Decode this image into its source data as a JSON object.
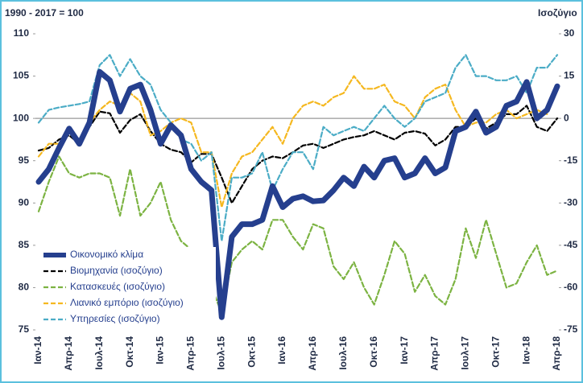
{
  "chart_data": {
    "type": "line",
    "title": "1990 - 2017 = 100",
    "y2_title": "Ισοζύγιο",
    "categories": [
      "Ιαν-14",
      null,
      null,
      "Απρ-14",
      null,
      null,
      "Ιουλ-14",
      null,
      null,
      "Οκτ-14",
      null,
      null,
      "Ιαν-15",
      null,
      null,
      "Απρ-15",
      null,
      null,
      "Ιουλ-15",
      null,
      null,
      "Οκτ-15",
      null,
      null,
      "Ιαν-16",
      null,
      null,
      "Απρ-16",
      null,
      null,
      "Ιουλ-16",
      null,
      null,
      "Οκτ-16",
      null,
      null,
      "Ιαν-17",
      null,
      null,
      "Απρ-17",
      null,
      null,
      "Ιουλ-17",
      null,
      null,
      "Οκτ-17",
      null,
      null,
      "Ιαν-18",
      null,
      null,
      "Απρ-18"
    ],
    "series": [
      {
        "name": "Οικονομικό κλίμα",
        "color": "#253f8e",
        "line_style": "solid",
        "axis": "y",
        "values": [
          92.5,
          94,
          96.5,
          98.8,
          97,
          99.5,
          105.5,
          104.5,
          100.8,
          103.5,
          104,
          101,
          97,
          99.2,
          98,
          94,
          92.5,
          91.5,
          76.5,
          86,
          87.5,
          87.5,
          88,
          92,
          89.5,
          90.5,
          90.8,
          90.2,
          90.3,
          91.5,
          93,
          92,
          94.3,
          93,
          95,
          95.3,
          93,
          93.5,
          95.3,
          93.5,
          94.2,
          98.5,
          99,
          100.8,
          98.3,
          99,
          101.5,
          102,
          104.3,
          100,
          101,
          103.8
        ]
      },
      {
        "name": "Βιομηχανία (ισοζύγιο)",
        "color": "#000000",
        "line_style": "dashed",
        "axis": "y2",
        "values": [
          -11.4,
          -10.5,
          -7.5,
          -6,
          -9,
          -3,
          2.4,
          1.8,
          -5.1,
          -0.6,
          1.5,
          -4.5,
          -9,
          -11.1,
          -12,
          -15.6,
          -12.6,
          -12.6,
          -21,
          -30,
          -24,
          -18,
          -15,
          -13.5,
          -14.1,
          -12,
          -9.6,
          -9,
          -10.5,
          -9,
          -7.5,
          -6.6,
          -6,
          -4.5,
          -6,
          -7.5,
          -5.1,
          -4.5,
          -5.4,
          -9.6,
          -7.5,
          -3,
          -3,
          0,
          -3.6,
          -1.5,
          1.5,
          1.5,
          4.5,
          -3,
          -4.5,
          0
        ]
      },
      {
        "name": "Κατασκευές (ισοζύγιο)",
        "color": "#7cb342",
        "line_style": "dashed",
        "axis": "y2",
        "values": [
          -33,
          -22.5,
          -13.5,
          -19.5,
          -21,
          -19.5,
          -19.5,
          -21,
          -34.5,
          -18,
          -34.5,
          -30,
          -22.5,
          -36,
          -43.5,
          -46.5,
          -48,
          -60,
          -69,
          -51,
          -46.5,
          -43.5,
          -46.5,
          -36,
          -36,
          -42,
          -46.5,
          -37.5,
          -39,
          -52.5,
          -57,
          -51,
          -60,
          -66,
          -55.5,
          -43.5,
          -48,
          -61.5,
          -55.5,
          -63,
          -66,
          -57,
          -39,
          -49.5,
          -36,
          -48,
          -60,
          -58.5,
          -51,
          -45,
          -55.5,
          -54
        ]
      },
      {
        "name": "Λιανικό εμπόριο (ισοζύγιο)",
        "color": "#f5b820",
        "line_style": "dashed",
        "axis": "y2",
        "values": [
          -13.5,
          -9,
          -9,
          -4.5,
          -7.5,
          -1.5,
          3,
          6,
          4.5,
          9,
          6,
          -6,
          -4.5,
          -1.5,
          0,
          -1.5,
          -12,
          -12,
          -31.5,
          -19.5,
          -13.5,
          -12,
          -7.5,
          -3,
          -9,
          0,
          4.5,
          6,
          4.5,
          7.5,
          9,
          15,
          10.5,
          10.5,
          12,
          6,
          4.5,
          0,
          7.5,
          10.5,
          12,
          3,
          -3,
          -1.5,
          -1.5,
          1.5,
          3,
          0,
          1.5,
          3,
          1.5,
          12
        ]
      },
      {
        "name": "Υπηρεσίες (ισοζύγιο)",
        "color": "#4bacc6",
        "line_style": "dashed",
        "axis": "y2",
        "values": [
          -1.5,
          3,
          3.9,
          4.5,
          5.1,
          6,
          18.9,
          22.5,
          15,
          21,
          15,
          12,
          3,
          -1.5,
          -7.5,
          -9,
          -15,
          -12,
          -43.5,
          -21,
          -21,
          -19.5,
          -12,
          -25.5,
          -18,
          -12,
          -12,
          -18,
          -3,
          -6,
          -4.5,
          -3,
          -4.5,
          0,
          4.5,
          0,
          -3,
          0,
          6,
          7.5,
          9,
          18,
          22.5,
          15,
          15,
          13.5,
          13.5,
          15,
          9,
          18,
          18,
          22.5
        ]
      }
    ],
    "ylim": [
      75,
      110
    ],
    "yticks": [
      75,
      80,
      85,
      90,
      95,
      100,
      105,
      110
    ],
    "y2lim": [
      -75,
      30
    ],
    "y2ticks": [
      -75,
      -60,
      -45,
      -30,
      -15,
      0,
      15,
      30
    ],
    "reference_line": 100,
    "legend": "lower left",
    "grid": false
  }
}
